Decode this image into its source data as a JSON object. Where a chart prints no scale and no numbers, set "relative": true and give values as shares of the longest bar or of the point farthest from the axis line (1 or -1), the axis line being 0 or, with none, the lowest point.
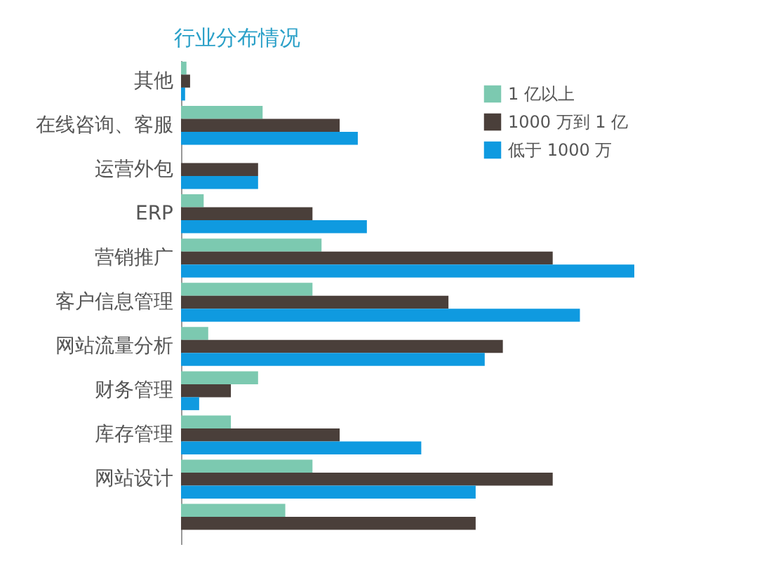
{
  "chart_data": {
    "type": "bar",
    "orientation": "horizontal",
    "relative": true,
    "title": "行业分布情况",
    "legend": "top right",
    "categories": [
      "其他",
      "在线咨询、客服",
      "运营外包",
      "ERP",
      "营销推广",
      "客户信息管理",
      "网站流量分析",
      "财务管理",
      "库存管理",
      "网站设计",
      null
    ],
    "series": [
      {
        "name": "1 亿以上",
        "color": "#7cc9b0",
        "values": [
          0.012,
          0.18,
          null,
          0.05,
          0.31,
          0.29,
          0.06,
          0.17,
          0.11,
          0.29,
          0.23
        ]
      },
      {
        "name": "1000 万到 1 亿",
        "color": "#4a3f3a",
        "values": [
          0.02,
          0.35,
          0.17,
          0.29,
          0.82,
          0.59,
          0.71,
          0.11,
          0.35,
          0.82,
          0.65
        ]
      },
      {
        "name": "低于 1000 万",
        "color": "#0f9ae0",
        "values": [
          0.009,
          0.39,
          0.17,
          0.41,
          1,
          0.88,
          0.67,
          0.04,
          0.53,
          0.65,
          null
        ]
      }
    ]
  }
}
